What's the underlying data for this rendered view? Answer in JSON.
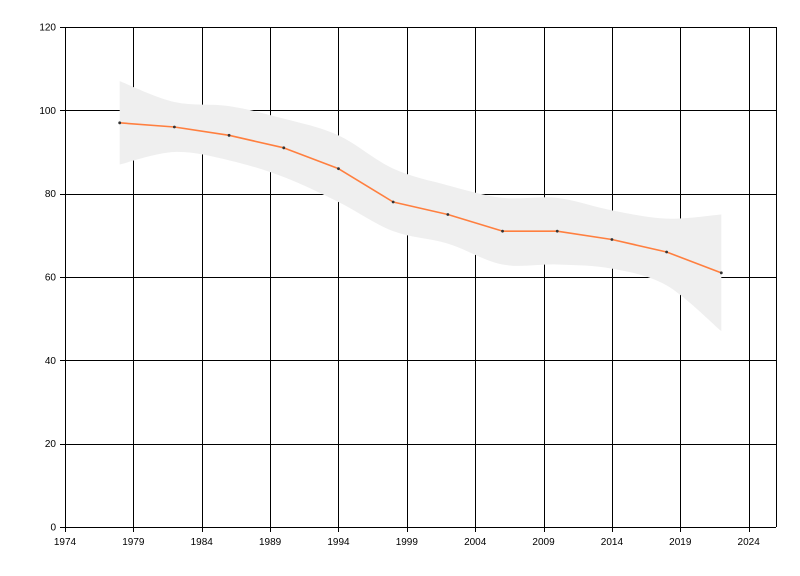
{
  "chart_data": {
    "type": "line",
    "title": "",
    "xlabel": "",
    "ylabel": "",
    "xlim": [
      1974,
      2026
    ],
    "ylim": [
      0,
      120
    ],
    "x_ticks": [
      1974,
      1979,
      1984,
      1989,
      1994,
      1999,
      2004,
      2009,
      2014,
      2019,
      2024
    ],
    "y_ticks": [
      0,
      20,
      40,
      60,
      80,
      100,
      120
    ],
    "grid": true,
    "legend": "none",
    "series": [
      {
        "x": [
          1978,
          1982,
          1986,
          1990,
          1994,
          1998,
          2002,
          2006,
          2010,
          2014,
          2018,
          2022
        ],
        "values": [
          97,
          96,
          94,
          91,
          86,
          78,
          75,
          71,
          71,
          69,
          66,
          61
        ],
        "upper": [
          107,
          102,
          101,
          98,
          94,
          86,
          82,
          79,
          79,
          76,
          74,
          75
        ],
        "lower": [
          87,
          90,
          88,
          84,
          78,
          71,
          68,
          63,
          63,
          62,
          58,
          47
        ],
        "color": "#ff7f3f",
        "band_color": "#efefef"
      }
    ],
    "colors": {
      "grid": "#000000",
      "axis": "#000000",
      "point": "#333333"
    }
  }
}
